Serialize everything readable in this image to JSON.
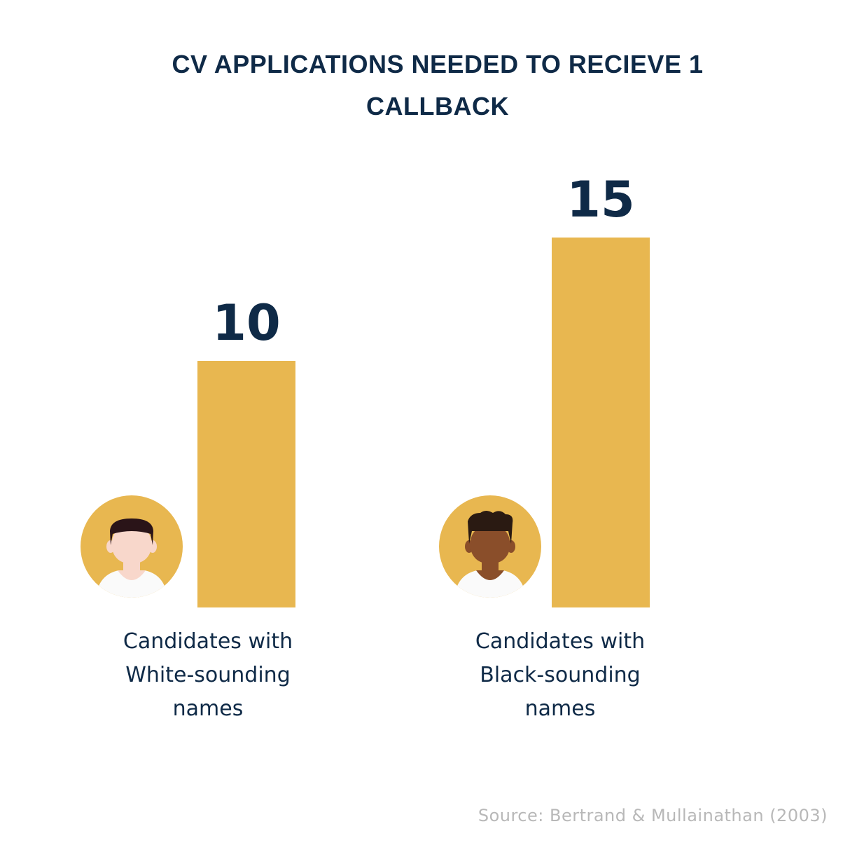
{
  "chart_data": {
    "type": "bar",
    "title": "CV APPLICATIONS NEEDED TO RECIEVE 1 CALLBACK",
    "categories": [
      "Candidates with\nWhite-sounding\nnames",
      "Candidates with\nBlack-sounding\nnames"
    ],
    "values": [
      10,
      15
    ],
    "value_labels": [
      "10",
      "15"
    ],
    "bar_color": "#E8B750",
    "icons": [
      "person-light-skin-icon",
      "person-dark-skin-icon"
    ]
  },
  "source": "Source: Bertrand & Mullainathan (2003)",
  "colors": {
    "text": "#0F2A47",
    "bar": "#E8B750",
    "icon_circle": "#E8B750",
    "light_skin": "#F8D7CB",
    "light_hair": "#2A1418",
    "dark_skin": "#8A4E2A",
    "dark_hair": "#2A1A12",
    "shirt": "#FAFAFA",
    "source_text": "#B8B8B8"
  }
}
